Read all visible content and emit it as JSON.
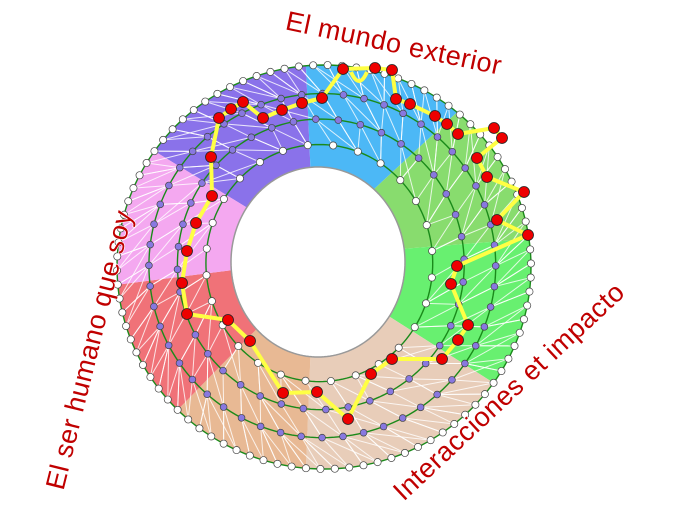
{
  "labels": {
    "top": "El mundo exterior",
    "left": "El ser humano que soy",
    "bottom_right": "Interacciones et impacto"
  },
  "colors": {
    "title_text": "#c00000",
    "path_line": "#ffff44",
    "path_node": "#ee0000",
    "ring_line": "#1a8a1a",
    "inner_node": "#8878e0",
    "outer_node": "#ffffff"
  },
  "sectors": [
    {
      "name": "purple",
      "color": "#8a72ea"
    },
    {
      "name": "blue",
      "color": "#4cb8f6"
    },
    {
      "name": "light-green",
      "color": "#88dc6e"
    },
    {
      "name": "bright-green",
      "color": "#68f070"
    },
    {
      "name": "beige",
      "color": "#e8cdb9"
    },
    {
      "name": "orange",
      "color": "#e8b994"
    },
    {
      "name": "red",
      "color": "#f07278"
    },
    {
      "name": "pink",
      "color": "#f4a8f0"
    }
  ]
}
